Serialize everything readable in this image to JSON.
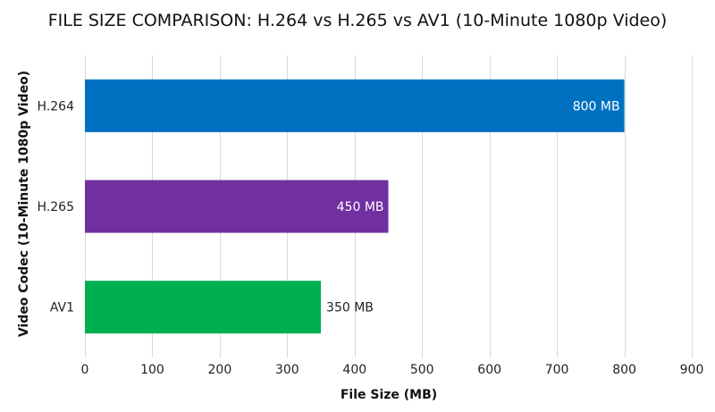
{
  "chart_data": {
    "type": "bar",
    "orientation": "horizontal",
    "title": "FILE SIZE COMPARISON: H.264 vs H.265 vs AV1 (10-Minute 1080p Video)",
    "xlabel": "File Size (MB)",
    "ylabel": "Video Codec (10-Minute 1080p Video)",
    "categories": [
      "H.264",
      "H.265",
      "AV1"
    ],
    "values": [
      800,
      450,
      350
    ],
    "data_labels": [
      "800 MB",
      "450 MB",
      "350 MB"
    ],
    "colors": [
      "#0070c0",
      "#7030a0",
      "#00b050"
    ],
    "label_colors": [
      "#ffffff",
      "#ffffff",
      "#222222"
    ],
    "label_positions": [
      "inside-end",
      "inside-end",
      "outside-end"
    ],
    "xlim": [
      0,
      900
    ],
    "xticks": [
      0,
      100,
      200,
      300,
      400,
      500,
      600,
      700,
      800,
      900
    ],
    "grid": true
  }
}
